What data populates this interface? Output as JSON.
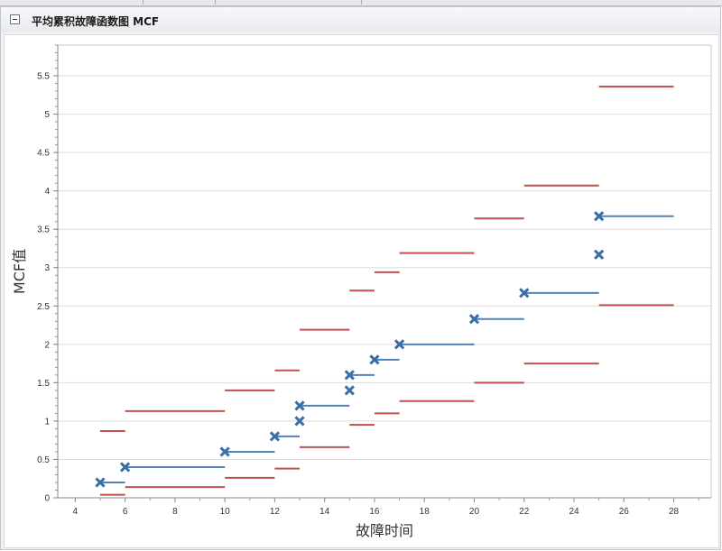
{
  "panel": {
    "title": "平均累积故障函数图 MCF"
  },
  "chart_data": {
    "type": "scatter",
    "title": "",
    "xlabel": "故障时间",
    "ylabel": "MCF值",
    "xlim": [
      3.3,
      29.5
    ],
    "ylim": [
      0,
      5.9
    ],
    "xticks": [
      4,
      6,
      8,
      10,
      12,
      14,
      16,
      18,
      20,
      22,
      24,
      26,
      28
    ],
    "yticks": [
      0,
      0.5,
      1,
      1.5,
      2,
      2.5,
      3,
      3.5,
      4,
      4.5,
      5,
      5.5
    ],
    "grid": true,
    "legend": "none",
    "colors": {
      "mcf": "#4f81bd",
      "bounds": "#c0504d"
    },
    "series": [
      {
        "type": "step",
        "points": [
          {
            "x": 5,
            "y": 0.2,
            "x_end": 6
          },
          {
            "x": 6,
            "y": 0.4,
            "x_end": 10
          },
          {
            "x": 10,
            "y": 0.6,
            "x_end": 12
          },
          {
            "x": 12,
            "y": 0.8,
            "x_end": 13
          },
          {
            "x": 13,
            "y": 1.0,
            "x_end": null
          },
          {
            "x": 13,
            "y": 1.2,
            "x_end": 15
          },
          {
            "x": 15,
            "y": 1.4,
            "x_end": null
          },
          {
            "x": 15,
            "y": 1.6,
            "x_end": 16
          },
          {
            "x": 16,
            "y": 1.8,
            "x_end": 17
          },
          {
            "x": 17,
            "y": 2.0,
            "x_end": 20
          },
          {
            "x": 20,
            "y": 2.33,
            "x_end": 22
          },
          {
            "x": 22,
            "y": 2.67,
            "x_end": 25
          },
          {
            "x": 25,
            "y": 3.17,
            "x_end": null
          },
          {
            "x": 25,
            "y": 3.67,
            "x_end": 28
          }
        ]
      },
      {
        "type": "step",
        "segments": [
          {
            "x": 5,
            "x_end": 6,
            "y": 0.87
          },
          {
            "x": 6,
            "x_end": 10,
            "y": 1.13
          },
          {
            "x": 10,
            "x_end": 12,
            "y": 1.4
          },
          {
            "x": 12,
            "x_end": 13,
            "y": 1.66
          },
          {
            "x": 13,
            "x_end": 15,
            "y": 2.19
          },
          {
            "x": 15,
            "x_end": 16,
            "y": 2.7
          },
          {
            "x": 16,
            "x_end": 17,
            "y": 2.94
          },
          {
            "x": 17,
            "x_end": 20,
            "y": 3.19
          },
          {
            "x": 20,
            "x_end": 22,
            "y": 3.64
          },
          {
            "x": 22,
            "x_end": 25,
            "y": 4.07
          },
          {
            "x": 25,
            "x_end": 28,
            "y": 5.36
          }
        ]
      },
      {
        "type": "step",
        "segments": [
          {
            "x": 5,
            "x_end": 6,
            "y": 0.04
          },
          {
            "x": 6,
            "x_end": 10,
            "y": 0.14
          },
          {
            "x": 10,
            "x_end": 12,
            "y": 0.26
          },
          {
            "x": 12,
            "x_end": 13,
            "y": 0.38
          },
          {
            "x": 13,
            "x_end": 15,
            "y": 0.66
          },
          {
            "x": 15,
            "x_end": 16,
            "y": 0.95
          },
          {
            "x": 16,
            "x_end": 17,
            "y": 1.1
          },
          {
            "x": 17,
            "x_end": 20,
            "y": 1.26
          },
          {
            "x": 20,
            "x_end": 22,
            "y": 1.5
          },
          {
            "x": 22,
            "x_end": 25,
            "y": 1.75
          },
          {
            "x": 25,
            "x_end": 28,
            "y": 2.51
          }
        ]
      }
    ]
  }
}
